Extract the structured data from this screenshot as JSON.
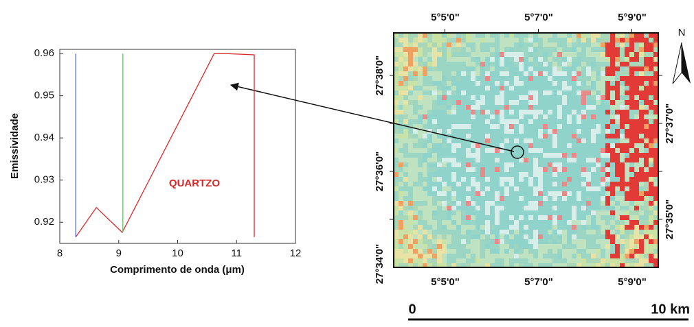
{
  "chart_data": {
    "type": "line",
    "xlabel": "Comprimento de onda (μm)",
    "ylabel": "Emissividade",
    "xlim": [
      8,
      12
    ],
    "xticks": [
      8,
      9,
      10,
      11,
      12
    ],
    "ylim": [
      0.915,
      0.961
    ],
    "yticks": [
      0.92,
      0.93,
      0.94,
      0.95,
      0.96
    ],
    "series": [
      {
        "name": "QUARTZO",
        "color": "#d62a2a",
        "x": [
          8.27,
          8.62,
          9.06,
          10.62,
          10.83,
          11.3,
          11.3
        ],
        "values": [
          0.9165,
          0.9235,
          0.9176,
          0.96,
          0.96,
          0.9597,
          0.9165
        ]
      },
      {
        "color": "#5a6fd0",
        "x": [
          8.27,
          8.27
        ],
        "values": [
          0.96,
          0.9165
        ]
      },
      {
        "color": "#66c266",
        "x": [
          9.07,
          9.07
        ],
        "values": [
          0.96,
          0.9176
        ]
      }
    ]
  },
  "map": {
    "top_labels": [
      "5°5'0\"",
      "5°7'0\"",
      "5°9'0\""
    ],
    "bottom_labels": [
      "5°5'0\"",
      "5°7'0\"",
      "5°9'0\""
    ],
    "left_labels": [
      "27°38'0\"",
      "27°36'0\"",
      "27°34'0\""
    ],
    "right_labels": [
      "27°37'0\"",
      "27°35'0\""
    ],
    "north": "N",
    "scale": [
      "0",
      "10 km"
    ]
  }
}
